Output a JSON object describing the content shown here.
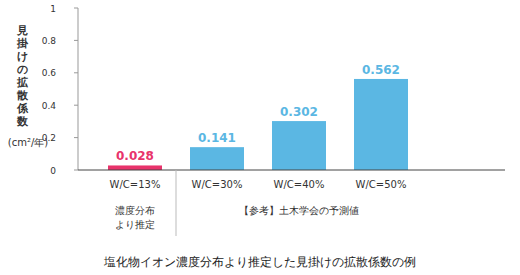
{
  "chart_data": {
    "type": "bar",
    "title": "塩化物イオン濃度分布より推定した見掛けの拡散係数の例",
    "ylabel": [
      "見掛けの拡散係数",
      "(cm²/年)"
    ],
    "categories": [
      "W/C=13%",
      "W/C=30%",
      "W/C=40%",
      "W/C=50%"
    ],
    "values": [
      0.028,
      0.141,
      0.302,
      0.562
    ],
    "colors": [
      "#e8336b",
      "#5bb7e3",
      "#5bb7e3",
      "#5bb7e3"
    ],
    "groups": [
      {
        "label": [
          "濃度分布",
          "より推定"
        ],
        "categories": [
          "W/C=13%"
        ]
      },
      {
        "label": [
          "【参考】土木学会の予測値"
        ],
        "categories": [
          "W/C=30%",
          "W/C=40%",
          "W/C=50%"
        ]
      }
    ],
    "ylim": [
      0,
      1
    ],
    "yticks": [
      0,
      0.2,
      0.4,
      0.6,
      0.8,
      1
    ],
    "grid": false,
    "data_labels": true
  }
}
